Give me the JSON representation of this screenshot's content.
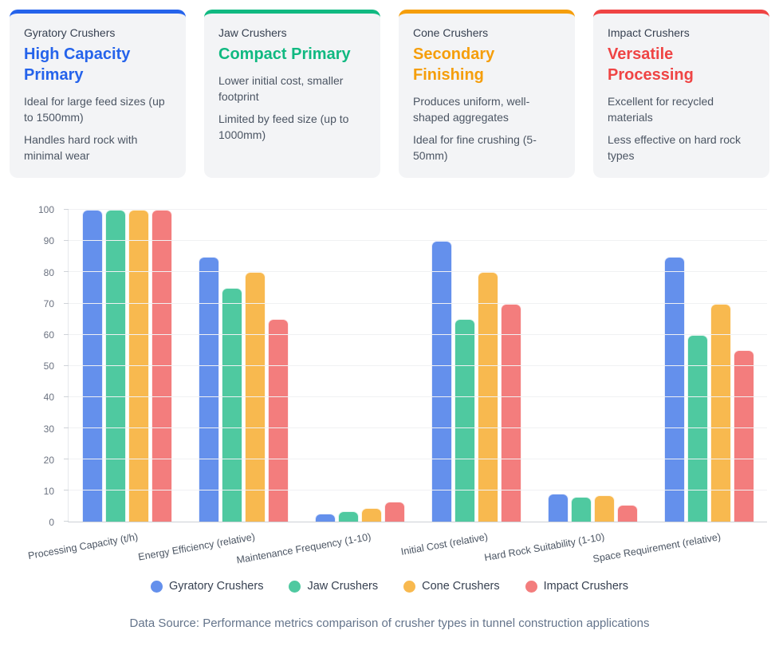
{
  "cards": [
    {
      "label": "Gyratory Crushers",
      "title": "High Capacity Primary",
      "points": [
        "Ideal for large feed sizes (up to 1500mm)",
        "Handles hard rock with minimal wear"
      ],
      "accent": "#2563eb"
    },
    {
      "label": "Jaw Crushers",
      "title": "Compact Primary",
      "points": [
        "Lower initial cost, smaller footprint",
        "Limited by feed size (up to 1000mm)"
      ],
      "accent": "#10b981"
    },
    {
      "label": "Cone Crushers",
      "title": "Secondary Finishing",
      "points": [
        "Produces uniform, well-shaped aggregates",
        "Ideal for fine crushing (5-50mm)"
      ],
      "accent": "#f59e0b"
    },
    {
      "label": "Impact Crushers",
      "title": "Versatile Processing",
      "points": [
        "Excellent for recycled materials",
        "Less effective on hard rock types"
      ],
      "accent": "#ef4444"
    }
  ],
  "chart_data": {
    "type": "bar",
    "categories": [
      "Processing Capacity (t/h)",
      "Energy Efficiency (relative)",
      "Maintenance Frequency (1-10)",
      "Initial Cost (relative)",
      "Hard Rock Suitability (1-10)",
      "Space Requirement (relative)"
    ],
    "series": [
      {
        "name": "Gyratory Crushers",
        "color": "#6490ec",
        "values": [
          100,
          85,
          2.5,
          90,
          9,
          85
        ]
      },
      {
        "name": "Jaw Crushers",
        "color": "#4fc9a0",
        "values": [
          100,
          75,
          3.5,
          65,
          8,
          60
        ]
      },
      {
        "name": "Cone Crushers",
        "color": "#f8b94f",
        "values": [
          100,
          80,
          4.5,
          80,
          8.5,
          70
        ]
      },
      {
        "name": "Impact Crushers",
        "color": "#f37d7d",
        "values": [
          100,
          65,
          6.5,
          70,
          5.5,
          55
        ]
      }
    ],
    "title": "",
    "xlabel": "",
    "ylabel": "",
    "ylim": [
      0,
      100
    ],
    "yticks": [
      0,
      10,
      20,
      30,
      40,
      50,
      60,
      70,
      80,
      90,
      100
    ],
    "grid": true,
    "legend_position": "bottom"
  },
  "footer": {
    "caption": "Data Source: Performance metrics comparison of crusher types in tunnel construction applications"
  }
}
